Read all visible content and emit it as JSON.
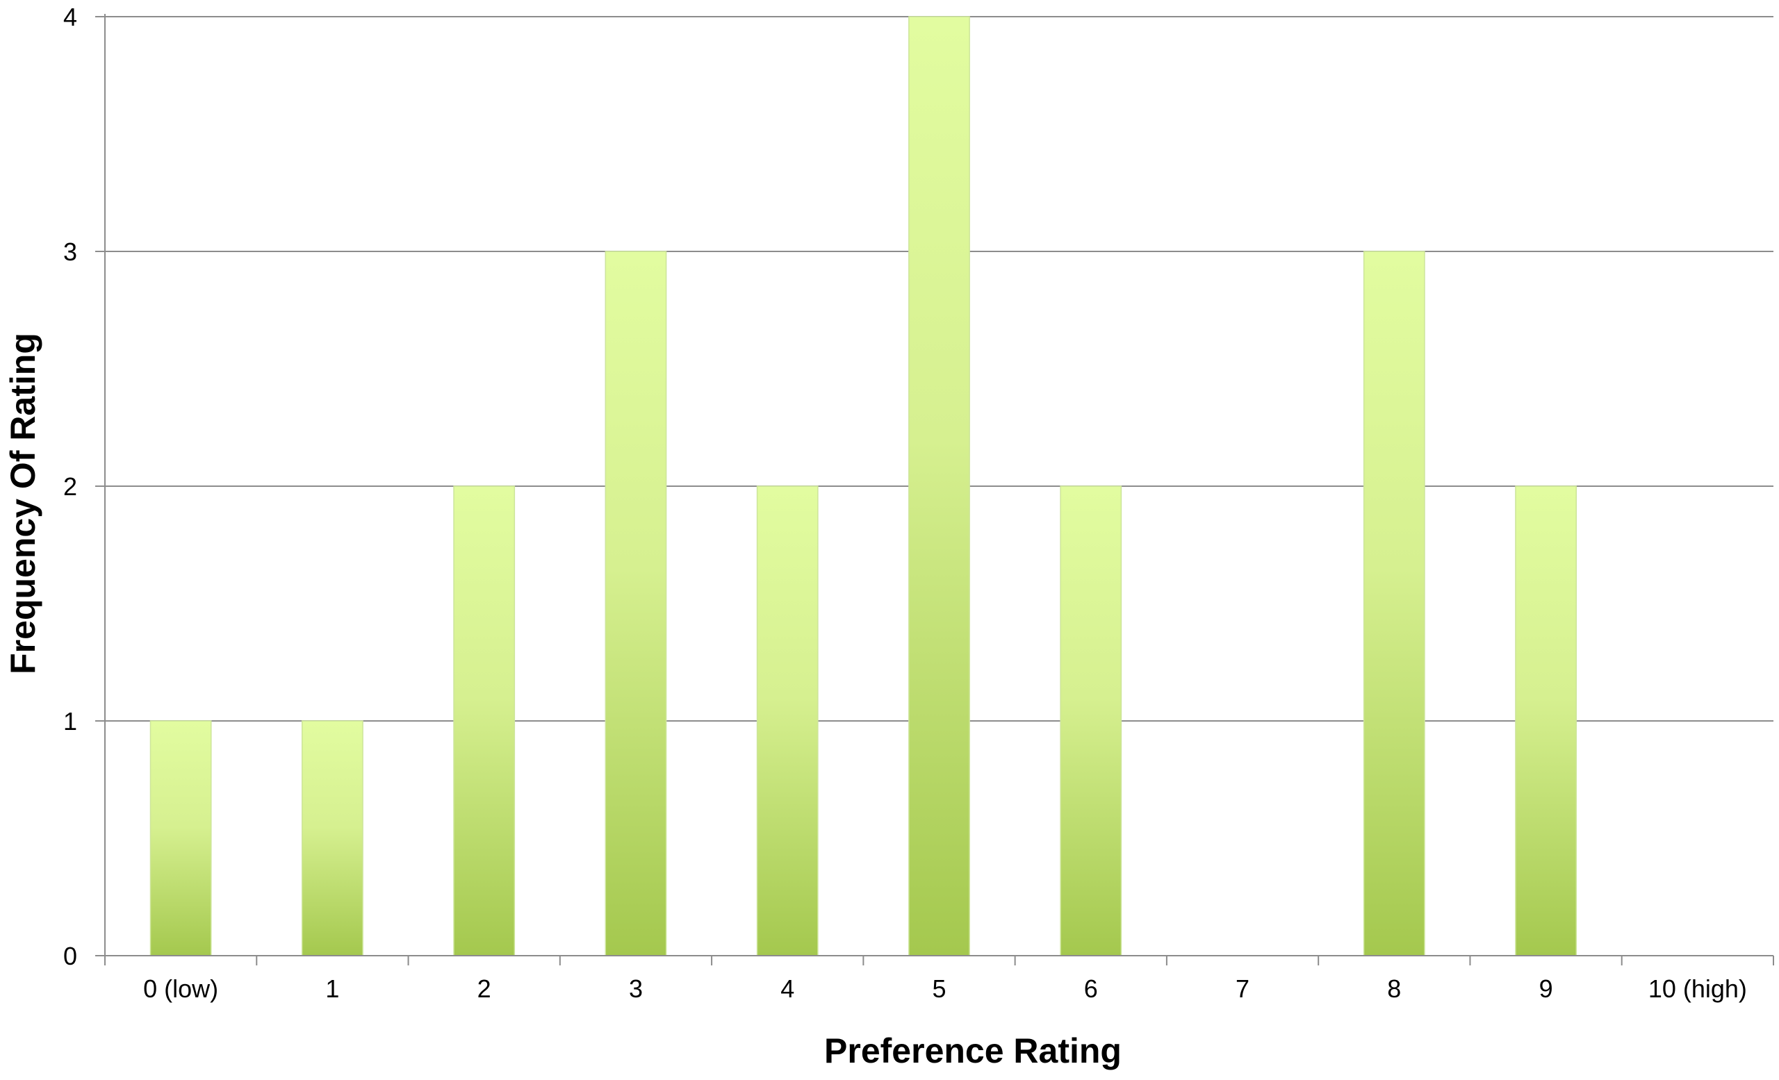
{
  "chart_data": {
    "type": "bar",
    "title": "",
    "xlabel": "Preference Rating",
    "ylabel": "Frequency Of Rating",
    "categories": [
      "0 (low)",
      "1",
      "2",
      "3",
      "4",
      "5",
      "6",
      "7",
      "8",
      "9",
      "10 (high)"
    ],
    "values": [
      1,
      1,
      2,
      3,
      2,
      4,
      2,
      0,
      3,
      2,
      0
    ],
    "ylim": [
      0,
      4
    ],
    "yticks": [
      0,
      1,
      2,
      3,
      4
    ],
    "grid": true,
    "legend": "none",
    "colors": {
      "bar_top": "#E2FCA0",
      "bar_bottom": "#A4C84E",
      "bar_edge": "#CDE59A",
      "grid": "#8C8C8C",
      "axis": "#8C8C8C"
    }
  }
}
